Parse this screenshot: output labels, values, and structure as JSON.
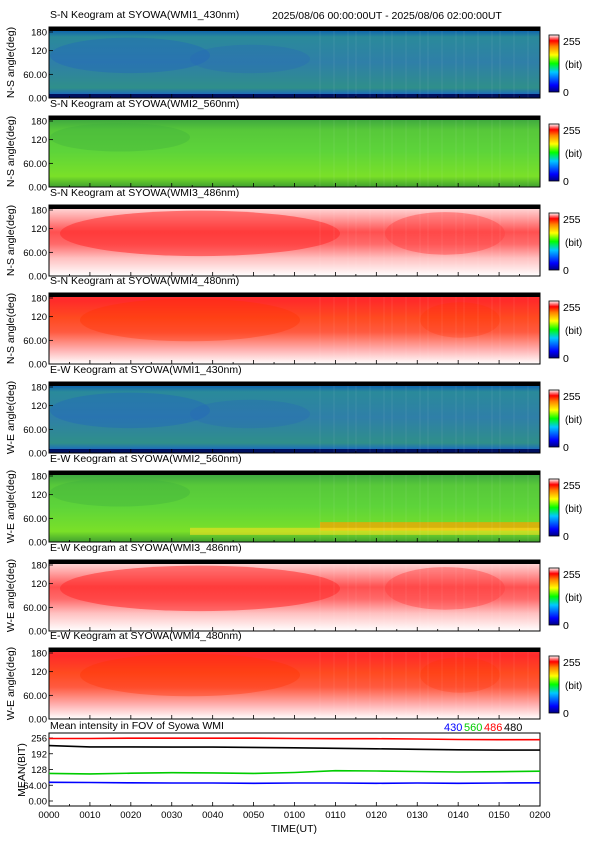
{
  "header": {
    "time_range": "2025/08/06 00:00:00UT - 2025/08/06 02:00:00UT"
  },
  "colorbar": {
    "max_label": "255",
    "unit_label": "(bit)",
    "min_label": "0"
  },
  "chart_data": [
    {
      "type": "heatmap",
      "title": "S-N Keogram at SYOWA(WMI1_430nm)",
      "ylabel": "N-S angle(deg)",
      "yticks": [
        "180",
        "120",
        "60.00",
        "0.00"
      ],
      "ylim": [
        0,
        180
      ],
      "colormap": "blue-green-yellow-red-white",
      "dominant_level": "low (blue-green, ~60-90 bit)"
    },
    {
      "type": "heatmap",
      "title": "S-N Keogram at SYOWA(WMI2_560nm)",
      "ylabel": "N-S angle(deg)",
      "yticks": [
        "180",
        "120",
        "60.00",
        "0.00"
      ],
      "ylim": [
        0,
        180
      ],
      "colormap": "blue-green-yellow-red-white",
      "dominant_level": "medium (green, ~110-140 bit)"
    },
    {
      "type": "heatmap",
      "title": "S-N Keogram at SYOWA(WMI3_486nm)",
      "ylabel": "N-S angle(deg)",
      "yticks": [
        "180",
        "120",
        "60.00",
        "0.00"
      ],
      "ylim": [
        0,
        180
      ],
      "colormap": "blue-green-yellow-red-white",
      "dominant_level": "high (red-white, ~230-255 bit)"
    },
    {
      "type": "heatmap",
      "title": "S-N Keogram at SYOWA(WMI4_480nm)",
      "ylabel": "N-S angle(deg)",
      "yticks": [
        "180",
        "120",
        "60.00",
        "0.00"
      ],
      "ylim": [
        0,
        180
      ],
      "colormap": "blue-green-yellow-red-white",
      "dominant_level": "high (red, ~220-255 bit)"
    },
    {
      "type": "heatmap",
      "title": "E-W Keogram at SYOWA(WMI1_430nm)",
      "ylabel": "W-E angle(deg)",
      "yticks": [
        "180",
        "120",
        "60.00",
        "0.00"
      ],
      "ylim": [
        0,
        180
      ],
      "colormap": "blue-green-yellow-red-white",
      "dominant_level": "low (blue-green, ~60-90 bit)"
    },
    {
      "type": "heatmap",
      "title": "E-W Keogram at SYOWA(WMI2_560nm)",
      "ylabel": "W-E angle(deg)",
      "yticks": [
        "180",
        "120",
        "60.00",
        "0.00"
      ],
      "ylim": [
        0,
        180
      ],
      "colormap": "blue-green-yellow-red-white",
      "dominant_level": "medium (green, yellow-orange band near 20-40 deg after 01:05)"
    },
    {
      "type": "heatmap",
      "title": "E-W Keogram at SYOWA(WMI3_486nm)",
      "ylabel": "W-E angle(deg)",
      "yticks": [
        "180",
        "120",
        "60.00",
        "0.00"
      ],
      "ylim": [
        0,
        180
      ],
      "colormap": "blue-green-yellow-red-white",
      "dominant_level": "high (red-white, ~230-255 bit)"
    },
    {
      "type": "heatmap",
      "title": "E-W Keogram at SYOWA(WMI4_480nm)",
      "ylabel": "W-E angle(deg)",
      "yticks": [
        "180",
        "120",
        "60.00",
        "0.00"
      ],
      "ylim": [
        0,
        180
      ],
      "colormap": "blue-green-yellow-red-white",
      "dominant_level": "high (red, ~220-255 bit)"
    },
    {
      "type": "line",
      "title": "Mean intensity in FOV of Syowa WMI",
      "ylabel": "MEAN(BIT)",
      "xlabel": "TIME(UT)",
      "yticks": [
        "256",
        "192",
        "128",
        "64.00",
        "0.00"
      ],
      "ylim": [
        0,
        256
      ],
      "xlim": [
        0,
        120
      ],
      "xticks": [
        "0000",
        "0010",
        "0020",
        "0030",
        "0040",
        "0050",
        "0100",
        "0110",
        "0120",
        "0130",
        "0140",
        "0150",
        "0200"
      ],
      "series": [
        {
          "name": "430",
          "color": "#0000ff",
          "x": [
            0,
            10,
            20,
            30,
            40,
            50,
            60,
            70,
            80,
            90,
            100,
            110,
            120
          ],
          "y": [
            76,
            75,
            74,
            73,
            73,
            72,
            73,
            73,
            72,
            73,
            72,
            73,
            74
          ]
        },
        {
          "name": "560",
          "color": "#00cc00",
          "x": [
            0,
            10,
            20,
            30,
            40,
            50,
            60,
            70,
            80,
            90,
            100,
            110,
            120
          ],
          "y": [
            112,
            110,
            113,
            115,
            114,
            112,
            116,
            123,
            122,
            120,
            118,
            119,
            121
          ]
        },
        {
          "name": "486",
          "color": "#ff0000",
          "x": [
            0,
            10,
            20,
            30,
            40,
            50,
            60,
            70,
            80,
            90,
            100,
            110,
            120
          ],
          "y": [
            254,
            254,
            255,
            255,
            255,
            255,
            254,
            253,
            253,
            252,
            250,
            249,
            249
          ]
        },
        {
          "name": "480",
          "color": "#000000",
          "x": [
            0,
            10,
            20,
            30,
            40,
            50,
            60,
            70,
            80,
            90,
            100,
            110,
            120
          ],
          "y": [
            225,
            220,
            220,
            219,
            219,
            218,
            216,
            214,
            212,
            210,
            208,
            207,
            207
          ]
        }
      ]
    }
  ]
}
